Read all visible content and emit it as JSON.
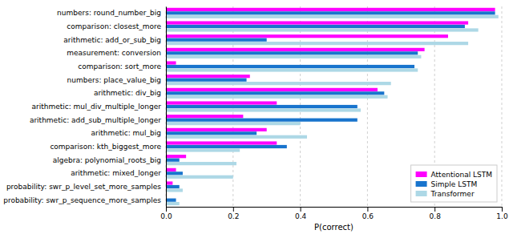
{
  "chart_data": {
    "type": "bar",
    "orientation": "horizontal",
    "categories": [
      "numbers: round_number_big",
      "comparison: closest_more",
      "arithmetic: add_or_sub_big",
      "measurement: conversion",
      "comparison: sort_more",
      "numbers: place_value_big",
      "arithmetic: div_big",
      "arithmetic: mul_div_multiple_longer",
      "arithmetic: add_sub_multiple_longer",
      "arithmetic: mul_big",
      "comparison: kth_biggest_more",
      "algebra: polynomial_roots_big",
      "arithmetic: mixed_longer",
      "probability: swr_p_level_set_more_samples",
      "probability: swr_p_sequence_more_samples"
    ],
    "series": [
      {
        "name": "Attentional LSTM",
        "color": "#ff00ff",
        "values": [
          0.98,
          0.9,
          0.84,
          0.77,
          0.03,
          0.25,
          0.63,
          0.33,
          0.23,
          0.3,
          0.33,
          0.06,
          0.03,
          0.02,
          0.0
        ]
      },
      {
        "name": "Simple LSTM",
        "color": "#1874cd",
        "values": [
          0.98,
          0.89,
          0.3,
          0.75,
          0.74,
          0.24,
          0.65,
          0.57,
          0.57,
          0.27,
          0.36,
          0.04,
          0.05,
          0.04,
          0.03
        ]
      },
      {
        "name": "Transformer",
        "color": "#add8e6",
        "values": [
          0.99,
          0.93,
          0.9,
          0.76,
          0.75,
          0.67,
          0.66,
          0.58,
          0.4,
          0.42,
          0.22,
          0.21,
          0.2,
          0.05,
          0.04
        ]
      }
    ],
    "xlabel": "P(correct)",
    "xlim": [
      0.0,
      1.0
    ],
    "xticks": [
      {
        "value": 0.0,
        "label": "0.0"
      },
      {
        "value": 0.2,
        "label": "0.2"
      },
      {
        "value": 0.4,
        "label": "0.4"
      },
      {
        "value": 0.6,
        "label": "0.6"
      },
      {
        "value": 0.8,
        "label": "0.8"
      },
      {
        "value": 1.0,
        "label": "1.0"
      }
    ],
    "grid": true,
    "legend": "lower right"
  }
}
